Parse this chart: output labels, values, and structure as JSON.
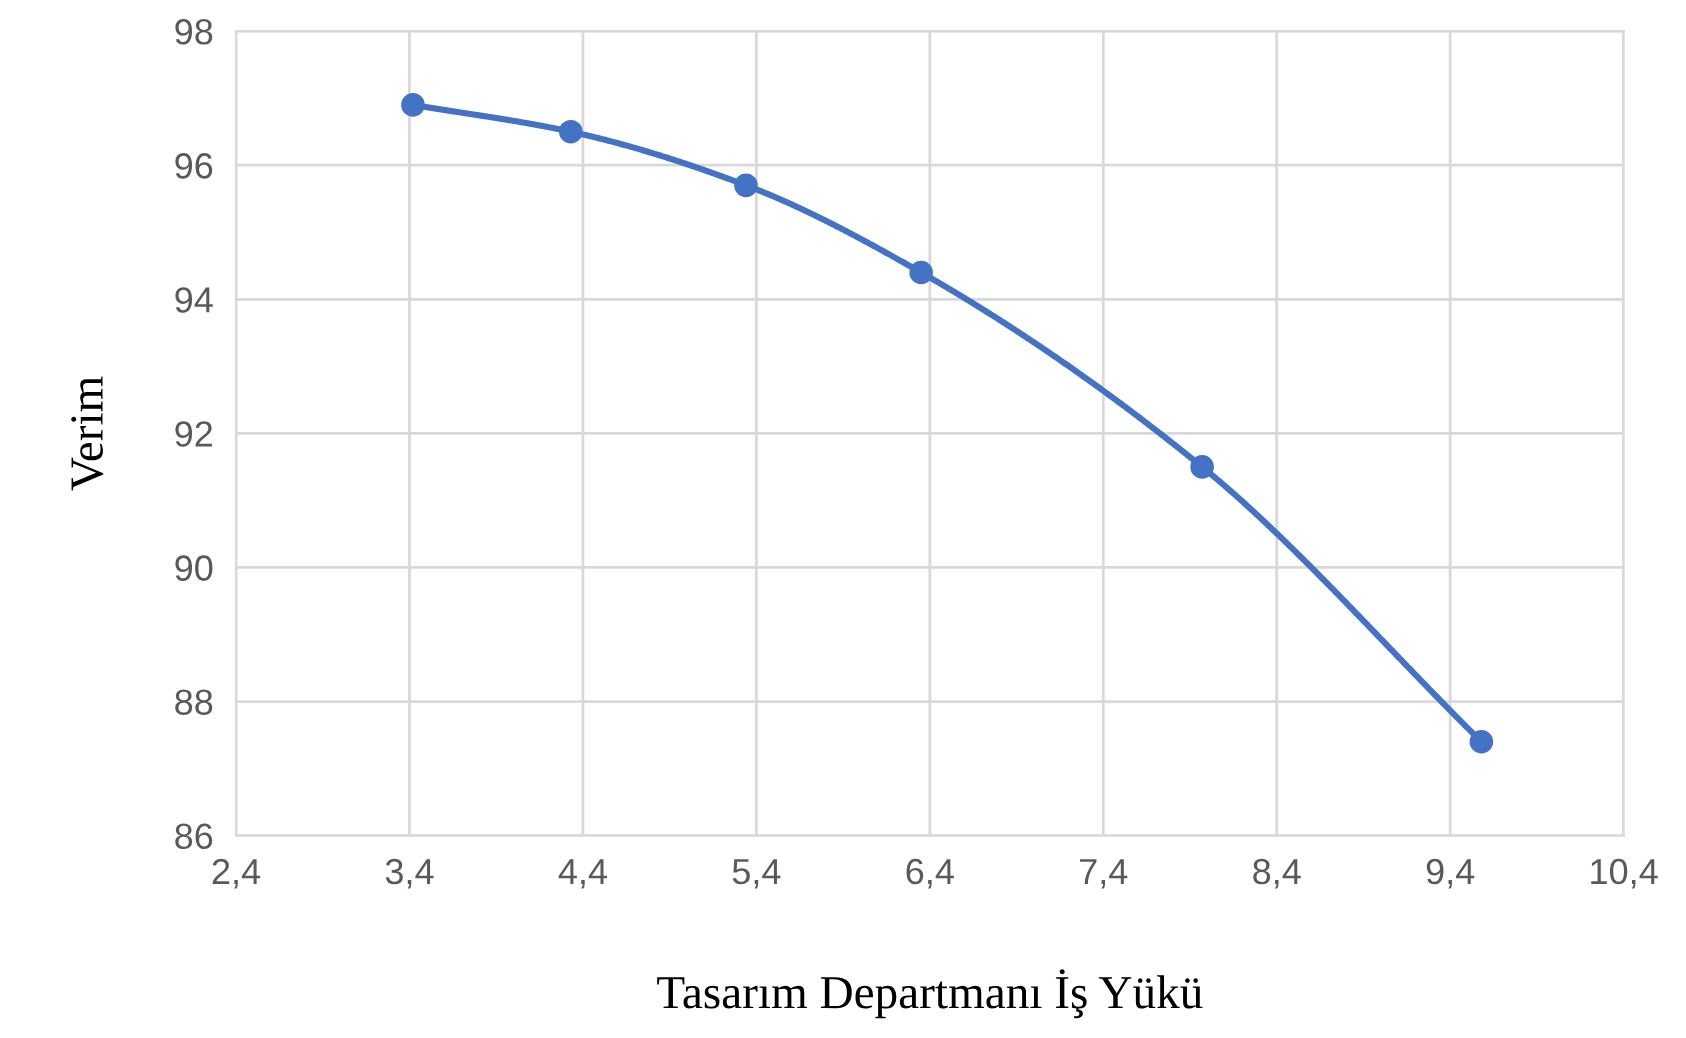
{
  "chart_data": {
    "type": "line",
    "xlabel": "Tasarım Departmanı İş Yükü",
    "ylabel": "Verim",
    "series": [
      {
        "color": "#4472c4",
        "x": [
          3.42,
          4.33,
          5.34,
          6.35,
          7.97,
          9.58
        ],
        "values": [
          96.9,
          96.5,
          95.7,
          94.4,
          91.5,
          87.4
        ]
      }
    ],
    "xlim": [
      2.4,
      10.4
    ],
    "xticks": [
      {
        "value": 2.4,
        "label": "2,4"
      },
      {
        "value": 3.4,
        "label": "3,4"
      },
      {
        "value": 4.4,
        "label": "4,4"
      },
      {
        "value": 5.4,
        "label": "5,4"
      },
      {
        "value": 6.4,
        "label": "6,4"
      },
      {
        "value": 7.4,
        "label": "7,4"
      },
      {
        "value": 8.4,
        "label": "8,4"
      },
      {
        "value": 9.4,
        "label": "9,4"
      },
      {
        "value": 10.4,
        "label": "10,4"
      }
    ],
    "ylim": [
      86,
      98
    ],
    "yticks": [
      86,
      88,
      90,
      92,
      94,
      96,
      98
    ],
    "grid": true,
    "marker": "circle",
    "line_style": "solid",
    "legend": false
  }
}
